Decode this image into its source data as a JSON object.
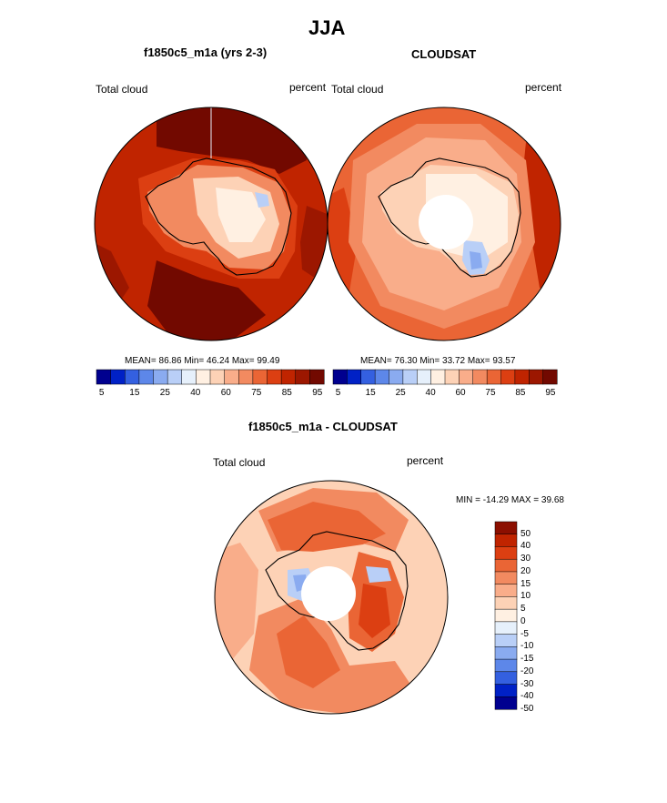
{
  "title": "JJA",
  "colors": {
    "seq": [
      "#00008f",
      "#0021c6",
      "#3460e0",
      "#5d87e9",
      "#8aabf0",
      "#b9cff7",
      "#e6f0fb",
      "#fff0e2",
      "#fdd2b6",
      "#f9ad8a",
      "#f28a60",
      "#ea6535",
      "#dc3f12",
      "#c02400",
      "#9c1700",
      "#720900"
    ],
    "diff": [
      "#00008f",
      "#0021c6",
      "#3460e0",
      "#5d87e9",
      "#8aabf0",
      "#b9cff7",
      "#e6f0fb",
      "#fff0e2",
      "#fdd2b6",
      "#f9ad8a",
      "#f28a60",
      "#ea6535",
      "#dc3f12",
      "#c02400",
      "#8c0f00"
    ],
    "land_outline": "#000000"
  },
  "panels": [
    {
      "subtitle": "f1850c5_m1a (yrs 2-3)",
      "left_label": "Total cloud",
      "right_label": "percent",
      "stats": "MEAN=  86.86  Min=  46.24  Max=  99.49",
      "colorbar_ticks": [
        "5",
        "15",
        "25",
        "40",
        "60",
        "75",
        "85",
        "95"
      ]
    },
    {
      "subtitle": "CLOUDSAT",
      "left_label": "Total cloud",
      "right_label": "percent",
      "stats": "MEAN=  76.30  Min=  33.72  Max=  93.57",
      "colorbar_ticks": [
        "5",
        "15",
        "25",
        "40",
        "60",
        "75",
        "85",
        "95"
      ]
    }
  ],
  "diff_panel": {
    "subtitle": "f1850c5_m1a - CLOUDSAT",
    "left_label": "Total cloud",
    "right_label": "percent",
    "minmax": "MIN = -14.29 MAX =  39.68",
    "colorbar_labels": [
      "50",
      "40",
      "30",
      "20",
      "15",
      "10",
      "5",
      "0",
      "-5",
      "-10",
      "-15",
      "-20",
      "-30",
      "-40",
      "-50"
    ]
  }
}
